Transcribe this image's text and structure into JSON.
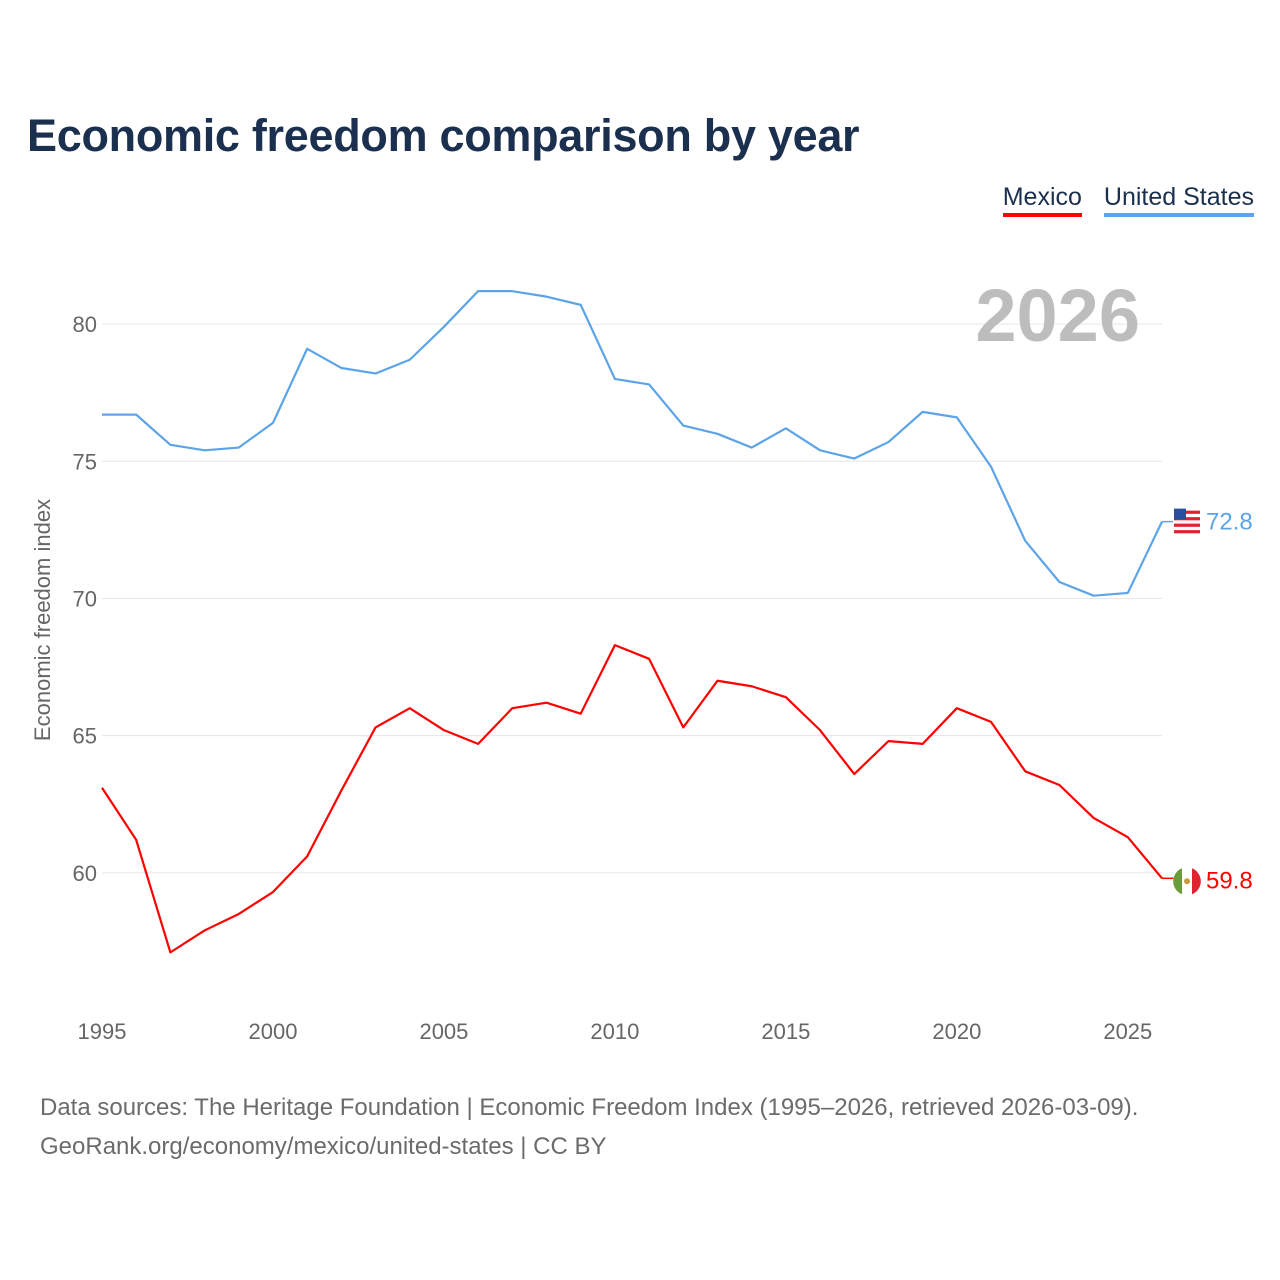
{
  "title": "Economic freedom comparison by year",
  "legend": [
    {
      "name": "Mexico",
      "color": "#ff0000"
    },
    {
      "name": "United States",
      "color": "#5ca4e8"
    }
  ],
  "source_lines": [
    "Data sources: The Heritage Foundation | Economic Freedom Index (1995–2026, retrieved 2026-03-09).",
    "GeoRank.org/economy/mexico/united-states | CC BY"
  ],
  "chart_data": {
    "type": "line",
    "title": "Economic freedom comparison by year",
    "xlabel": "",
    "ylabel": "Economic freedom index",
    "watermark_year": "2026",
    "xlim": [
      1995,
      2026
    ],
    "ylim": [
      55,
      82.7
    ],
    "x_ticks": [
      1995,
      2000,
      2005,
      2010,
      2015,
      2020,
      2025
    ],
    "y_ticks": [
      60,
      65,
      70,
      75,
      80
    ],
    "grid": true,
    "x": [
      1995,
      1996,
      1997,
      1998,
      1999,
      2000,
      2001,
      2002,
      2003,
      2004,
      2005,
      2006,
      2007,
      2008,
      2009,
      2010,
      2011,
      2012,
      2013,
      2014,
      2015,
      2016,
      2017,
      2018,
      2019,
      2020,
      2021,
      2022,
      2023,
      2024,
      2025,
      2026
    ],
    "series": [
      {
        "name": "United States",
        "color": "#5ca4e8",
        "end_label": "72.8",
        "values": [
          76.7,
          76.7,
          75.6,
          75.4,
          75.5,
          76.4,
          79.1,
          78.4,
          78.2,
          78.7,
          79.9,
          81.2,
          81.2,
          81.0,
          80.7,
          78.0,
          77.8,
          76.3,
          76.0,
          75.5,
          76.2,
          75.4,
          75.1,
          75.7,
          76.8,
          76.6,
          74.8,
          72.1,
          70.6,
          70.1,
          70.2,
          72.8
        ]
      },
      {
        "name": "Mexico",
        "color": "#ff0000",
        "end_label": "59.8",
        "values": [
          63.1,
          61.2,
          57.1,
          57.9,
          58.5,
          59.3,
          60.6,
          63.0,
          65.3,
          66.0,
          65.2,
          64.7,
          66.0,
          66.2,
          65.8,
          68.3,
          67.8,
          65.3,
          67.0,
          66.8,
          66.4,
          65.2,
          63.6,
          64.8,
          64.7,
          66.0,
          65.5,
          63.7,
          63.2,
          62.0,
          61.3,
          59.8
        ]
      }
    ]
  }
}
